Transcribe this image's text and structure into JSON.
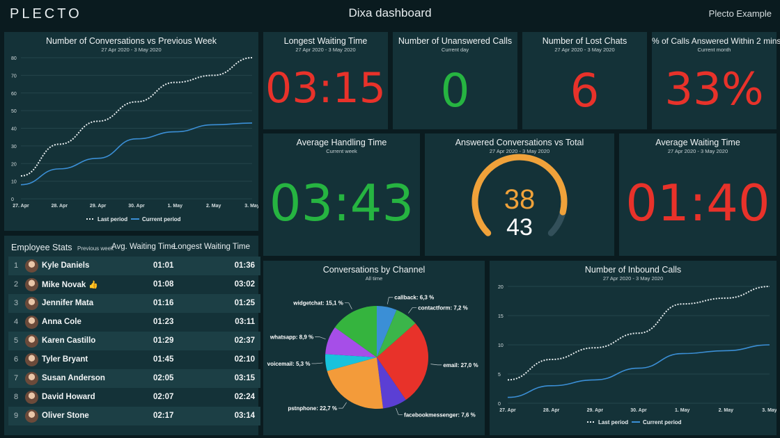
{
  "header": {
    "logo": "PLECTO",
    "title": "Dixa dashboard",
    "account": "Plecto Example"
  },
  "conversations_chart": {
    "title": "Number of Conversations vs Previous Week",
    "subtitle": "27 Apr 2020 - 3 May 2020",
    "legend_last": "Last period",
    "legend_current": "Current period"
  },
  "kpis": {
    "longest_waiting": {
      "title": "Longest Waiting Time",
      "subtitle": "27 Apr 2020 - 3 May 2020",
      "value": "03:15"
    },
    "unanswered_calls": {
      "title": "Number of Unanswered Calls",
      "subtitle": "Current day",
      "value": "0"
    },
    "lost_chats": {
      "title": "Number of Lost Chats",
      "subtitle": "27 Apr 2020 - 3 May 2020",
      "value": "6"
    },
    "calls_within_2": {
      "title": "% of Calls Answered Within 2 mins",
      "subtitle": "Current month",
      "value": "33%"
    },
    "avg_handling": {
      "title": "Average Handling Time",
      "subtitle": "Current week",
      "value": "03:43"
    },
    "answered_vs_total": {
      "title": "Answered Conversations vs Total",
      "subtitle": "27 Apr 2020 - 3 May 2020",
      "answered": "38",
      "total": "43",
      "fraction": 0.884
    },
    "avg_waiting": {
      "title": "Average Waiting Time",
      "subtitle": "27 Apr 2020 - 3 May 2020",
      "value": "01:40"
    }
  },
  "employee_stats": {
    "title": "Employee Stats",
    "period": "Previous week",
    "col_avg": "Avg. Waiting Time",
    "col_longest": "Longest Waiting Time",
    "rows": [
      {
        "rank": "1",
        "name": "Kyle Daniels",
        "avg": "01:01",
        "longest": "01:36"
      },
      {
        "rank": "2",
        "name": "Mike Novak",
        "avg": "01:08",
        "longest": "03:02"
      },
      {
        "rank": "3",
        "name": "Jennifer Mata",
        "avg": "01:16",
        "longest": "01:25"
      },
      {
        "rank": "4",
        "name": "Anna Cole",
        "avg": "01:23",
        "longest": "03:11"
      },
      {
        "rank": "5",
        "name": "Karen Castillo",
        "avg": "01:29",
        "longest": "02:37"
      },
      {
        "rank": "6",
        "name": "Tyler Bryant",
        "avg": "01:45",
        "longest": "02:10"
      },
      {
        "rank": "7",
        "name": "Susan Anderson",
        "avg": "02:05",
        "longest": "03:15"
      },
      {
        "rank": "8",
        "name": "David Howard",
        "avg": "02:07",
        "longest": "02:24"
      },
      {
        "rank": "9",
        "name": "Oliver Stone",
        "avg": "02:17",
        "longest": "03:14"
      }
    ]
  },
  "channel_chart": {
    "title": "Conversations by Channel",
    "subtitle": "All time"
  },
  "inbound_chart": {
    "title": "Number of Inbound Calls",
    "subtitle": "27 Apr 2020 - 3 May 2020",
    "legend_last": "Last period",
    "legend_current": "Current period"
  },
  "colors": {
    "red": "#e8322a",
    "green": "#26b441",
    "gauge_orange": "#f0a23a",
    "current_line": "#3b8fd6",
    "last_line": "#e8eef0"
  },
  "chart_data": [
    {
      "type": "line",
      "x": [
        "27. Apr",
        "28. Apr",
        "29. Apr",
        "30. Apr",
        "1. May",
        "2. May",
        "3. May"
      ],
      "ylim": [
        0,
        80
      ],
      "yticks": [
        "0",
        "10",
        "20",
        "30",
        "40",
        "50",
        "60",
        "70",
        "80"
      ],
      "series": [
        {
          "name": "Last period",
          "values": [
            13,
            31,
            44,
            55,
            66,
            70,
            80
          ]
        },
        {
          "name": "Current period",
          "values": [
            8,
            17,
            23,
            34,
            38,
            42,
            43
          ]
        }
      ]
    },
    {
      "type": "pie",
      "slices": [
        {
          "label": "callback: 6,3 %",
          "value": 6.3,
          "color": "#3b8fd6"
        },
        {
          "label": "contactform: 7,2 %",
          "value": 7.2,
          "color": "#3bb54a"
        },
        {
          "label": "email: 27,0 %",
          "value": 27.0,
          "color": "#e8322a"
        },
        {
          "label": "facebookmessenger: 7,6 %",
          "value": 7.6,
          "color": "#5b3fd4"
        },
        {
          "label": "pstnphone: 22,7 %",
          "value": 22.7,
          "color": "#f39b3a"
        },
        {
          "label": "voicemail: 5,3 %",
          "value": 5.3,
          "color": "#19c2dc"
        },
        {
          "label": "whatsapp: 8,9 %",
          "value": 8.9,
          "color": "#a64ee8"
        },
        {
          "label": "widgetchat: 15,1 %",
          "value": 15.1,
          "color": "#35b43e"
        }
      ]
    },
    {
      "type": "line",
      "x": [
        "27. Apr",
        "28. Apr",
        "29. Apr",
        "30. Apr",
        "1. May",
        "2. May",
        "3. May"
      ],
      "ylim": [
        0,
        20
      ],
      "yticks": [
        "0",
        "5",
        "10",
        "15",
        "20"
      ],
      "series": [
        {
          "name": "Last period",
          "values": [
            4,
            7.5,
            9.5,
            12,
            17,
            18,
            20
          ]
        },
        {
          "name": "Current period",
          "values": [
            1,
            3,
            4,
            6,
            8.5,
            9,
            10
          ]
        }
      ]
    }
  ]
}
